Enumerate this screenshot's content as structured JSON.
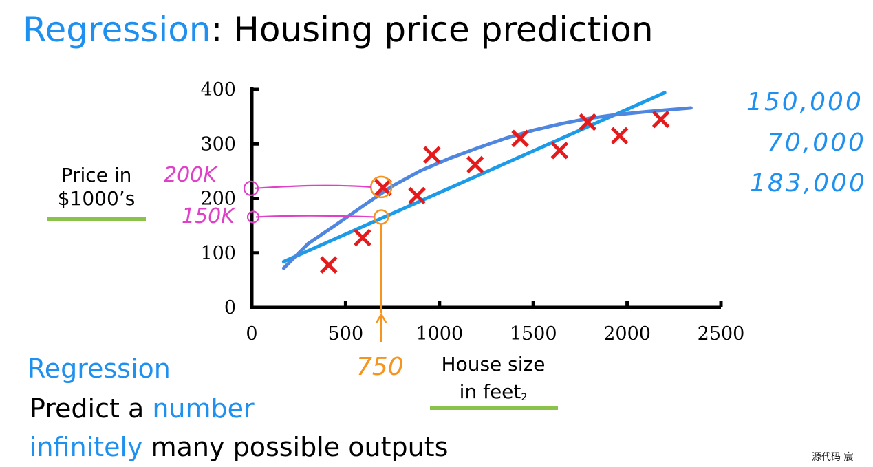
{
  "slide": {
    "title_highlight": "Regression",
    "title_rest": ": Housing price prediction",
    "y_axis_label_line1": "Price in",
    "y_axis_label_line2": "$1000’s",
    "x_axis_label_line1": "House size",
    "x_axis_label_line2": "in feet",
    "x_axis_label_sup": "2",
    "regression_heading": "Regression",
    "predict_prefix": "Predict a ",
    "predict_highlight": "number",
    "infinitely_highlight": "infinitely",
    "infinitely_rest": " many possible outputs",
    "watermark": "源代码  宸"
  },
  "annotations": {
    "label_200k": "200K",
    "label_150k": "150K",
    "label_750": "750",
    "side_values": [
      "150,000",
      "70,000",
      "183,000"
    ]
  },
  "colors": {
    "accent_blue": "#1e90f0",
    "data_marker_red": "#e41a1c",
    "curve_blue": "#4f86e0",
    "linear_fit_blue": "#1c9be8",
    "magenta_annotation": "#e040c8",
    "orange_annotation": "#f7941d",
    "underline_green": "#8bc34a"
  },
  "chart_data": {
    "type": "scatter",
    "xlabel": "House size in feet²",
    "ylabel": "Price in $1000’s",
    "xlim": [
      0,
      2500
    ],
    "ylim": [
      0,
      400
    ],
    "xticks": [
      0,
      500,
      1000,
      1500,
      2000,
      2500
    ],
    "yticks": [
      0,
      100,
      200,
      300,
      400
    ],
    "grid": false,
    "series": [
      {
        "marker": "x",
        "x": [
          410,
          590,
          700,
          880,
          960,
          1190,
          1430,
          1640,
          1790,
          1960,
          2180
        ],
        "y": [
          78,
          128,
          220,
          205,
          280,
          262,
          310,
          288,
          340,
          315,
          345
        ]
      }
    ],
    "fits": [
      {
        "kind": "linear",
        "x": [
          170,
          2200
        ],
        "y": [
          84,
          394
        ]
      },
      {
        "kind": "curve",
        "x": [
          170,
          300,
          450,
          600,
          750,
          900,
          1050,
          1200,
          1350,
          1500,
          1650,
          1800,
          1950,
          2100,
          2200,
          2340
        ],
        "y": [
          72,
          117,
          152,
          188,
          223,
          251,
          273,
          292,
          310,
          325,
          337,
          347,
          354,
          359,
          362,
          366
        ]
      }
    ],
    "annotation_lines": [
      {
        "at_x": 690,
        "y": 221,
        "label": "200K"
      },
      {
        "at_x": 690,
        "y": 166,
        "label": "150K"
      },
      {
        "x": 690,
        "label": "750"
      }
    ]
  }
}
